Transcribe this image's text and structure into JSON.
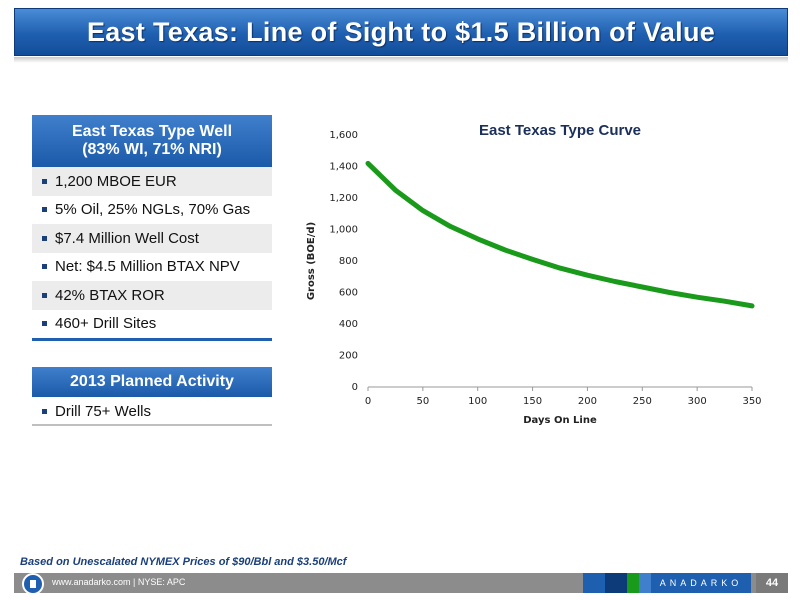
{
  "title": "East Texas: Line of Sight to $1.5 Billion of Value",
  "type_well": {
    "heading_line1": "East Texas Type Well",
    "heading_line2": "(83% WI, 71% NRI)",
    "items": [
      "1,200 MBOE EUR",
      "5% Oil, 25% NGLs, 70% Gas",
      "$7.4 Million Well Cost",
      "Net: $4.5 Million BTAX NPV",
      "42% BTAX ROR",
      "460+ Drill Sites"
    ]
  },
  "planned_activity": {
    "heading": "2013 Planned Activity",
    "items": [
      "Drill 75+ Wells"
    ]
  },
  "footnote": "Based on Unescalated NYMEX Prices of $90/Bbl and $3.50/Mcf",
  "footer": {
    "website": "www.anadarko.com  |  NYSE: APC",
    "brand": "ANADARKO",
    "page": "44"
  },
  "colors": {
    "curve": "#1a9a1a",
    "title_blue": "#1f5fb0",
    "footer_squares": [
      "#1f5fb0",
      "#0d3a78",
      "#1a9a1a",
      "#3f7fcc"
    ]
  },
  "chart_data": {
    "type": "line",
    "title": "East Texas Type Curve",
    "xlabel": "Days On Line",
    "ylabel": "Gross (BOE/d)",
    "xlim": [
      0,
      350
    ],
    "ylim": [
      0,
      1600
    ],
    "xticks": [
      0,
      50,
      100,
      150,
      200,
      250,
      300,
      350
    ],
    "yticks": [
      0,
      200,
      400,
      600,
      800,
      1000,
      1200,
      1400,
      1600
    ],
    "grid": false,
    "series": [
      {
        "x": [
          0,
          25,
          50,
          75,
          100,
          125,
          150,
          175,
          200,
          225,
          250,
          275,
          300,
          325,
          350
        ],
        "y": [
          1420,
          1250,
          1120,
          1020,
          940,
          870,
          810,
          755,
          710,
          670,
          635,
          600,
          570,
          545,
          515
        ]
      }
    ]
  }
}
